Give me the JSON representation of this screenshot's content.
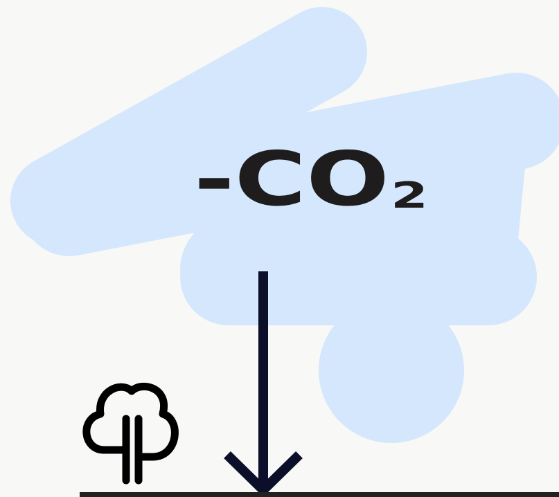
{
  "label": {
    "main": "-CO",
    "subscript": "2"
  }
}
